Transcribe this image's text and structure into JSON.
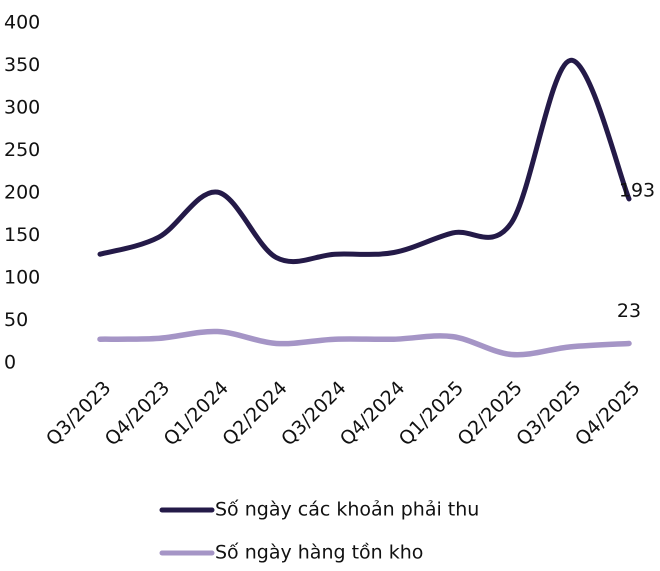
{
  "chart_data": {
    "type": "line",
    "categories": [
      "Q3/2023",
      "Q4/2023",
      "Q1/2024",
      "Q2/2024",
      "Q3/2024",
      "Q4/2024",
      "Q1/2025",
      "Q2/2025",
      "Q3/2025",
      "Q4/2025"
    ],
    "series": [
      {
        "name": "Số ngày các khoản phải thu",
        "color": "#241a48",
        "values": [
          128,
          148,
          201,
          124,
          128,
          130,
          153,
          165,
          356,
          193
        ]
      },
      {
        "name": "Số ngày hàng tồn kho",
        "color": "#a595c6",
        "values": [
          28,
          29,
          37,
          23,
          28,
          28,
          31,
          10,
          19,
          23
        ]
      }
    ],
    "ylim": [
      0,
      400
    ],
    "yticks": [
      0,
      50,
      100,
      150,
      200,
      250,
      300,
      350,
      400
    ],
    "smooth": true,
    "legend": "bottom"
  }
}
